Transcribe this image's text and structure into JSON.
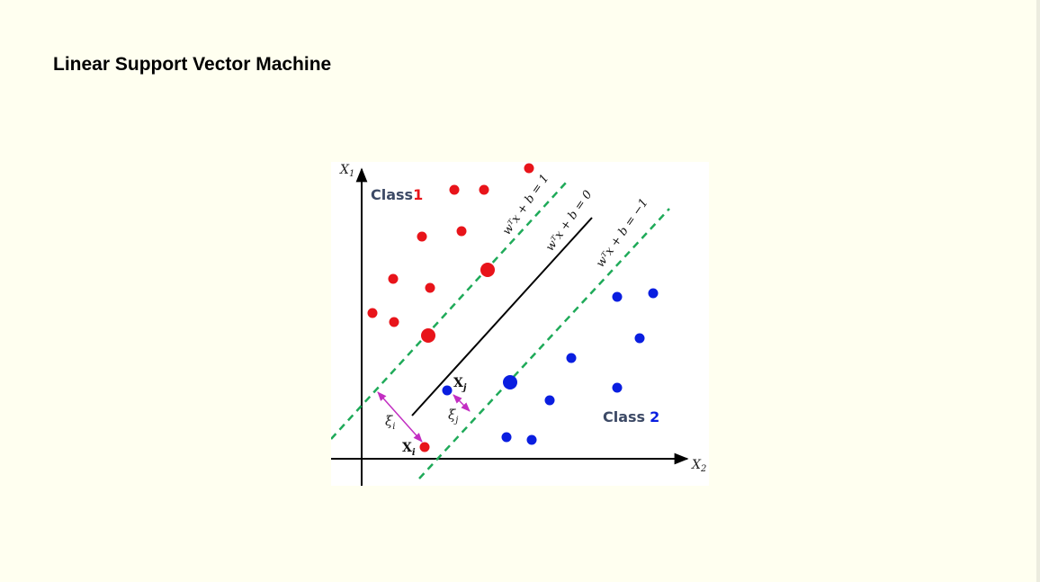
{
  "slide": {
    "title": "Linear Support Vector Machine"
  },
  "diagram": {
    "axes": {
      "x_label": "X",
      "x_sub": "2",
      "y_label": "X",
      "y_sub": "1"
    },
    "classes": {
      "class1_text": "Class",
      "class1_number": "1",
      "class2_text": "Class",
      "class2_number": "2"
    },
    "hyperplanes": {
      "upper_margin": "wᵀx + b = 1",
      "decision": "wᵀx + b = 0",
      "lower_margin": "wᵀx + b = −1"
    },
    "slack": {
      "xi_label": "X",
      "xi_sub": "i",
      "xj_label": "X",
      "xj_sub": "j",
      "xi_i_symbol": "ξ",
      "xi_i_sub": "i",
      "xi_j_symbol": "ξ",
      "xi_j_sub": "j"
    },
    "colors": {
      "class1": "#e8141a",
      "class2": "#0a1ee0",
      "margin_line": "#1faa59",
      "decision_line": "#000000",
      "slack_arrow": "#c22ec2",
      "class_label": "#3d4a66"
    }
  }
}
